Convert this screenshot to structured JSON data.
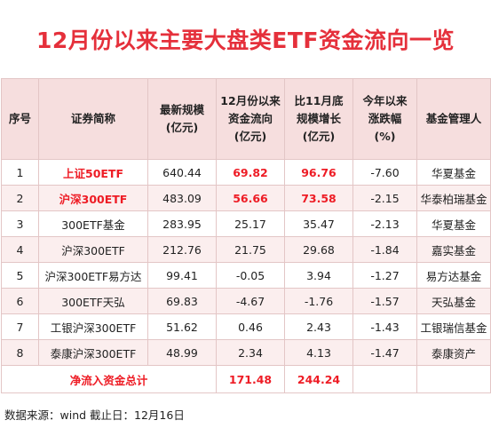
{
  "title": "12月份以来主要大盘类ETF资金流向一览",
  "headers": {
    "seq": "序号",
    "name": "证券简称",
    "scale_l1": "最新规模",
    "scale_l2": "(亿元)",
    "flow_l1": "12月份以来",
    "flow_l2": "资金流向",
    "flow_l3": "(亿元)",
    "growth_l1": "比11月底",
    "growth_l2": "规模增长",
    "growth_l3": "(亿元)",
    "change_l1": "今年以来",
    "change_l2": "涨跌幅",
    "change_l3": "(%)",
    "manager": "基金管理人"
  },
  "rows": [
    {
      "seq": "1",
      "name": "上证50ETF",
      "scale": "640.44",
      "flow": "69.82",
      "growth": "96.76",
      "change": "-7.60",
      "manager": "华夏基金"
    },
    {
      "seq": "2",
      "name": "沪深300ETF",
      "scale": "483.09",
      "flow": "56.66",
      "growth": "73.58",
      "change": "-2.15",
      "manager": "华泰柏瑞基金"
    },
    {
      "seq": "3",
      "name": "300ETF基金",
      "scale": "283.95",
      "flow": "25.17",
      "growth": "35.47",
      "change": "-2.13",
      "manager": "华夏基金"
    },
    {
      "seq": "4",
      "name": "沪深300ETF",
      "scale": "212.76",
      "flow": "21.75",
      "growth": "29.68",
      "change": "-1.84",
      "manager": "嘉实基金"
    },
    {
      "seq": "5",
      "name": "沪深300ETF易方达",
      "scale": "99.41",
      "flow": "-0.05",
      "growth": "3.94",
      "change": "-1.27",
      "manager": "易方达基金"
    },
    {
      "seq": "6",
      "name": "300ETF天弘",
      "scale": "69.83",
      "flow": "-4.67",
      "growth": "-1.76",
      "change": "-1.57",
      "manager": "天弘基金"
    },
    {
      "seq": "7",
      "name": "工银沪深300ETF",
      "scale": "51.62",
      "flow": "0.46",
      "growth": "2.43",
      "change": "-1.43",
      "manager": "工银瑞信基金"
    },
    {
      "seq": "8",
      "name": "泰康沪深300ETF",
      "scale": "48.99",
      "flow": "2.34",
      "growth": "4.13",
      "change": "-1.47",
      "manager": "泰康资产"
    }
  ],
  "total": {
    "label": "净流入资金总计",
    "flow": "171.48",
    "growth": "244.24"
  },
  "footer": "数据来源：wind  截止日：12月16日",
  "colors": {
    "accent_red": "#ee1c25",
    "title_red": "#e5303b",
    "header_bg": "#f6dede",
    "stripe_bg": "#fbeeee",
    "border": "#e3c6c6"
  }
}
